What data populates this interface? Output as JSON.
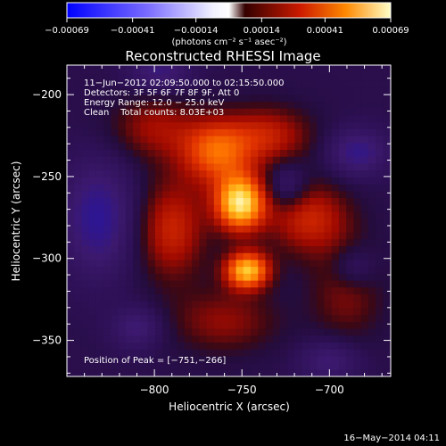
{
  "chart_data": {
    "type": "heatmap",
    "title": "Reconstructed RHESSI Image",
    "xlabel": "Heliocentric X (arcsec)",
    "ylabel": "Heliocentric Y (arcsec)",
    "xlim": [
      -850,
      -665
    ],
    "ylim": [
      -372,
      -182
    ],
    "x_ticks": [
      -800,
      -750,
      -700
    ],
    "x_tick_labels": [
      "−800",
      "−750",
      "−700"
    ],
    "y_ticks": [
      -200,
      -250,
      -300,
      -350
    ],
    "y_tick_labels": [
      "−200",
      "−250",
      "−300",
      "−350"
    ],
    "colorbar": {
      "range": [
        -0.00069,
        0.00069
      ],
      "tick_values": [
        -0.00069,
        -0.00041,
        -0.00014,
        0.00014,
        0.00041,
        0.00069
      ],
      "tick_labels": [
        "−0.00069",
        "−0.00041",
        "−0.00014",
        "0.00014",
        "0.00041",
        "0.00069"
      ],
      "label": "(photons cm⁻² s⁻¹ asec⁻²)"
    },
    "annotations": [
      "11−Jun−2012 02:09:50.000 to 02:15:50.000",
      "Detectors: 3F 5F 6F 7F 8F 9F, Att 0",
      "Energy Range: 12.0 − 25.0 keV",
      "Clean    Total counts: 8.03E+03"
    ],
    "peak_label": "Position of Peak = [−751,−266]",
    "peak": [
      -751,
      -266
    ],
    "sources": [
      {
        "x": -751,
        "y": -266,
        "peak": 0.00069,
        "sx": 10,
        "sy": 12
      },
      {
        "x": -747,
        "y": -307,
        "peak": 0.00062,
        "sx": 9,
        "sy": 8
      },
      {
        "x": -765,
        "y": -235,
        "peak": 0.0004,
        "sx": 14,
        "sy": 14
      },
      {
        "x": -735,
        "y": -225,
        "peak": 0.00028,
        "sx": 18,
        "sy": 13
      },
      {
        "x": -790,
        "y": -282,
        "peak": 0.0003,
        "sx": 14,
        "sy": 22
      },
      {
        "x": -712,
        "y": -275,
        "peak": 0.0003,
        "sx": 17,
        "sy": 16
      },
      {
        "x": -800,
        "y": -220,
        "peak": 0.00022,
        "sx": 18,
        "sy": 14
      },
      {
        "x": -690,
        "y": -320,
        "peak": 0.00018,
        "sx": 15,
        "sy": 22
      },
      {
        "x": -760,
        "y": -338,
        "peak": 0.0002,
        "sx": 22,
        "sy": 14
      }
    ],
    "background": -8e-05,
    "negatives": [
      {
        "x": -832,
        "y": -275,
        "peak": -0.00032,
        "sx": 14,
        "sy": 24
      },
      {
        "x": -684,
        "y": -235,
        "peak": -0.00028,
        "sx": 12,
        "sy": 10
      },
      {
        "x": -724,
        "y": -255,
        "peak": -0.0002,
        "sx": 8,
        "sy": 10
      },
      {
        "x": -810,
        "y": -342,
        "peak": -0.00022,
        "sx": 10,
        "sy": 9
      },
      {
        "x": -686,
        "y": -305,
        "peak": -0.00018,
        "sx": 9,
        "sy": 9
      },
      {
        "x": -700,
        "y": -362,
        "peak": -0.00022,
        "sx": 12,
        "sy": 9
      },
      {
        "x": -797,
        "y": -186,
        "peak": -0.00024,
        "sx": 12,
        "sy": 8
      }
    ]
  },
  "footer": {
    "date": "16−May−2014 04:11"
  }
}
